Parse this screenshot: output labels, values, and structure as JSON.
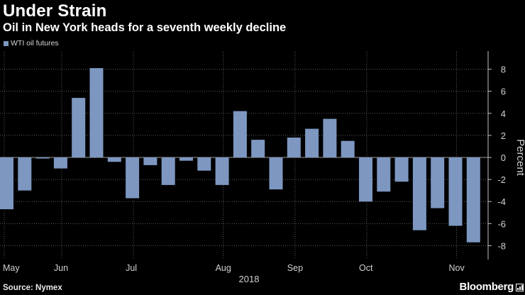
{
  "header": {
    "title": "Under Strain",
    "subtitle": "Oil in New York heads for a seventh weekly decline"
  },
  "legend": {
    "label": "WTI oil futures",
    "color": "#7d97c1"
  },
  "footer": {
    "source": "Source: Nymex",
    "brand": "Bloomberg"
  },
  "colors": {
    "background": "#000000",
    "bar": "#7d97c1",
    "grid": "#5a5a5a",
    "axis_text": "#d0d0d0"
  },
  "chart_data": {
    "type": "bar",
    "title": "Under Strain",
    "subtitle": "Oil in New York heads for a seventh weekly decline",
    "xlabel": "2018",
    "ylabel": "Percent",
    "ylim": [
      -9.5,
      9.5
    ],
    "yticks": [
      8,
      6,
      4,
      2,
      0,
      -2,
      -4,
      -6,
      -8
    ],
    "ytick_labels": [
      "8",
      "6",
      "4",
      "2",
      "0",
      "-2",
      "-4",
      "-6",
      "-8"
    ],
    "y_axis_side": "right",
    "grid": true,
    "legend_position": "top-left",
    "x_tick_labels": [
      {
        "label": "May",
        "bar_index": 0
      },
      {
        "label": "Jun",
        "bar_index": 3
      },
      {
        "label": "Jul",
        "bar_index": 7
      },
      {
        "label": "Aug",
        "bar_index": 12
      },
      {
        "label": "Sep",
        "bar_index": 16
      },
      {
        "label": "Oct",
        "bar_index": 20
      },
      {
        "label": "Nov",
        "bar_index": 25
      }
    ],
    "series": [
      {
        "name": "WTI oil futures",
        "values": [
          -4.7,
          -3.0,
          -0.1,
          -1.0,
          5.4,
          8.1,
          -0.4,
          -3.7,
          -0.7,
          -2.5,
          -0.3,
          -1.2,
          -2.5,
          4.2,
          1.6,
          -2.9,
          1.8,
          2.6,
          3.5,
          1.5,
          -4.0,
          -3.1,
          -2.2,
          -6.6,
          -4.6,
          -6.2,
          -7.7
        ]
      }
    ]
  }
}
